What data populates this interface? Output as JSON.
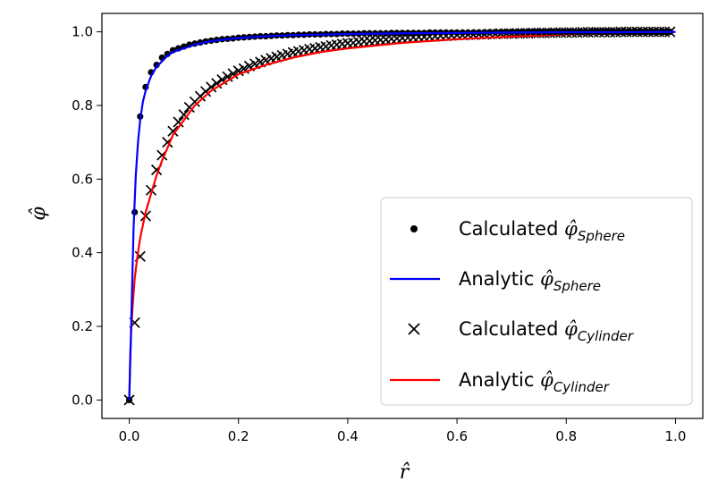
{
  "chart_data": {
    "type": "line",
    "xlabel": "r̂",
    "ylabel": "φ̂",
    "xlim": [
      -0.05,
      1.05
    ],
    "ylim": [
      -0.05,
      1.05
    ],
    "xticks": [
      0.0,
      0.2,
      0.4,
      0.6,
      0.8,
      1.0
    ],
    "xtick_labels": [
      "0.0",
      "0.2",
      "0.4",
      "0.6",
      "0.8",
      "1.0"
    ],
    "yticks": [
      0.0,
      0.2,
      0.4,
      0.6,
      0.8,
      1.0
    ],
    "ytick_labels": [
      "0.0",
      "0.2",
      "0.4",
      "0.6",
      "0.8",
      "1.0"
    ],
    "grid": false,
    "legend_position": "lower-right",
    "series": [
      {
        "name": "Calculated φ̂Sphere",
        "label_main": "Calculated ",
        "label_symbol": "φ̂",
        "label_sub": "Sphere",
        "style": "markers",
        "marker": "dot",
        "color": "#000000",
        "x": [
          0.0,
          0.01,
          0.02,
          0.03,
          0.04,
          0.05,
          0.06,
          0.07,
          0.08,
          0.09,
          0.1,
          0.11,
          0.12,
          0.13,
          0.14,
          0.15,
          0.16,
          0.17,
          0.18,
          0.19,
          0.2,
          0.21,
          0.22,
          0.23,
          0.24,
          0.25,
          0.26,
          0.27,
          0.28,
          0.29,
          0.3,
          0.31,
          0.32,
          0.33,
          0.34,
          0.35,
          0.36,
          0.37,
          0.38,
          0.39,
          0.4,
          0.41,
          0.42,
          0.43,
          0.44,
          0.45,
          0.46,
          0.47,
          0.48,
          0.49,
          0.5,
          0.51,
          0.52,
          0.53,
          0.54,
          0.55,
          0.56,
          0.57,
          0.58,
          0.59,
          0.6,
          0.61,
          0.62,
          0.63,
          0.64,
          0.65,
          0.66,
          0.67,
          0.68,
          0.69,
          0.7,
          0.71,
          0.72,
          0.73,
          0.74,
          0.75,
          0.76,
          0.77,
          0.78,
          0.79,
          0.8,
          0.81,
          0.82,
          0.83,
          0.84,
          0.85,
          0.86,
          0.87,
          0.88,
          0.89,
          0.9,
          0.91,
          0.92,
          0.93,
          0.94,
          0.95,
          0.96,
          0.97,
          0.98,
          0.99
        ],
        "y": [
          0.0,
          0.51,
          0.77,
          0.85,
          0.89,
          0.91,
          0.93,
          0.94,
          0.95,
          0.955,
          0.96,
          0.965,
          0.968,
          0.971,
          0.974,
          0.976,
          0.978,
          0.98,
          0.981,
          0.982,
          0.984,
          0.985,
          0.986,
          0.987,
          0.988,
          0.988,
          0.989,
          0.99,
          0.99,
          0.991,
          0.991,
          0.992,
          0.992,
          0.993,
          0.993,
          0.993,
          0.994,
          0.994,
          0.994,
          0.995,
          0.995,
          0.995,
          0.995,
          0.996,
          0.996,
          0.996,
          0.996,
          0.996,
          0.997,
          0.997,
          0.997,
          0.997,
          0.997,
          0.997,
          0.997,
          0.998,
          0.998,
          0.998,
          0.998,
          0.998,
          0.998,
          0.998,
          0.998,
          0.998,
          0.998,
          0.998,
          0.999,
          0.999,
          0.999,
          0.999,
          0.999,
          0.999,
          0.999,
          0.999,
          0.999,
          0.999,
          0.999,
          0.999,
          0.999,
          0.999,
          0.999,
          0.999,
          0.999,
          0.999,
          0.999,
          1.0,
          1.0,
          1.0,
          1.0,
          1.0,
          1.0,
          1.0,
          1.0,
          1.0,
          1.0,
          1.0,
          1.0,
          1.0,
          1.0,
          1.0
        ]
      },
      {
        "name": "Analytic φ̂Sphere",
        "label_main": "Analytic ",
        "label_symbol": "φ̂",
        "label_sub": "Sphere",
        "style": "line",
        "color": "#0000ff",
        "x": [
          0.0,
          0.004,
          0.008,
          0.012,
          0.016,
          0.02,
          0.025,
          0.03,
          0.04,
          0.05,
          0.06,
          0.07,
          0.08,
          0.1,
          0.12,
          0.15,
          0.2,
          0.25,
          0.3,
          0.4,
          0.5,
          0.6,
          0.7,
          0.8,
          0.9,
          1.0
        ],
        "y": [
          0.0,
          0.23,
          0.47,
          0.61,
          0.7,
          0.76,
          0.81,
          0.84,
          0.88,
          0.905,
          0.92,
          0.935,
          0.945,
          0.955,
          0.965,
          0.975,
          0.983,
          0.988,
          0.991,
          0.994,
          0.996,
          0.997,
          0.998,
          0.999,
          0.999,
          1.0
        ]
      },
      {
        "name": "Calculated φ̂Cylinder",
        "label_main": "Calculated ",
        "label_symbol": "φ̂",
        "label_sub": "Cylinder",
        "style": "markers",
        "marker": "x",
        "color": "#000000",
        "x": [
          0.0,
          0.01,
          0.02,
          0.03,
          0.04,
          0.05,
          0.06,
          0.07,
          0.08,
          0.09,
          0.1,
          0.11,
          0.12,
          0.13,
          0.14,
          0.15,
          0.16,
          0.17,
          0.18,
          0.19,
          0.2,
          0.21,
          0.22,
          0.23,
          0.24,
          0.25,
          0.26,
          0.27,
          0.28,
          0.29,
          0.3,
          0.31,
          0.32,
          0.33,
          0.34,
          0.35,
          0.36,
          0.37,
          0.38,
          0.39,
          0.4,
          0.41,
          0.42,
          0.43,
          0.44,
          0.45,
          0.46,
          0.47,
          0.48,
          0.49,
          0.5,
          0.51,
          0.52,
          0.53,
          0.54,
          0.55,
          0.56,
          0.57,
          0.58,
          0.59,
          0.6,
          0.61,
          0.62,
          0.63,
          0.64,
          0.65,
          0.66,
          0.67,
          0.68,
          0.69,
          0.7,
          0.71,
          0.72,
          0.73,
          0.74,
          0.75,
          0.76,
          0.77,
          0.78,
          0.79,
          0.8,
          0.81,
          0.82,
          0.83,
          0.84,
          0.85,
          0.86,
          0.87,
          0.88,
          0.89,
          0.9,
          0.91,
          0.92,
          0.93,
          0.94,
          0.95,
          0.96,
          0.97,
          0.98,
          0.99
        ],
        "y": [
          0.0,
          0.21,
          0.39,
          0.5,
          0.57,
          0.625,
          0.665,
          0.7,
          0.73,
          0.755,
          0.775,
          0.795,
          0.81,
          0.825,
          0.838,
          0.85,
          0.86,
          0.87,
          0.878,
          0.886,
          0.894,
          0.9,
          0.907,
          0.913,
          0.918,
          0.923,
          0.928,
          0.932,
          0.936,
          0.94,
          0.944,
          0.947,
          0.95,
          0.953,
          0.955,
          0.958,
          0.96,
          0.963,
          0.965,
          0.967,
          0.969,
          0.97,
          0.972,
          0.974,
          0.975,
          0.977,
          0.978,
          0.979,
          0.981,
          0.982,
          0.983,
          0.984,
          0.985,
          0.986,
          0.986,
          0.987,
          0.988,
          0.989,
          0.989,
          0.99,
          0.991,
          0.991,
          0.992,
          0.992,
          0.993,
          0.993,
          0.994,
          0.994,
          0.995,
          0.995,
          0.995,
          0.996,
          0.996,
          0.996,
          0.997,
          0.997,
          0.997,
          0.997,
          0.998,
          0.998,
          0.998,
          0.998,
          0.998,
          0.999,
          0.999,
          0.999,
          0.999,
          0.999,
          0.999,
          0.999,
          1.0,
          1.0,
          1.0,
          1.0,
          1.0,
          1.0,
          1.0,
          1.0,
          1.0,
          1.0
        ]
      },
      {
        "name": "Analytic φ̂Cylinder",
        "label_main": "Analytic ",
        "label_symbol": "φ̂",
        "label_sub": "Cylinder",
        "style": "line",
        "color": "#ff0000",
        "x": [
          0.0,
          0.002,
          0.004,
          0.006,
          0.008,
          0.01,
          0.015,
          0.02,
          0.03,
          0.04,
          0.05,
          0.06,
          0.08,
          0.1,
          0.12,
          0.15,
          0.2,
          0.25,
          0.3,
          0.35,
          0.4,
          0.5,
          0.6,
          0.7,
          0.8,
          0.9,
          1.0
        ],
        "y": [
          0.0,
          0.13,
          0.2,
          0.25,
          0.29,
          0.33,
          0.39,
          0.44,
          0.51,
          0.56,
          0.61,
          0.65,
          0.72,
          0.76,
          0.8,
          0.84,
          0.885,
          0.91,
          0.93,
          0.945,
          0.955,
          0.97,
          0.98,
          0.987,
          0.993,
          0.997,
          1.0
        ]
      }
    ]
  }
}
